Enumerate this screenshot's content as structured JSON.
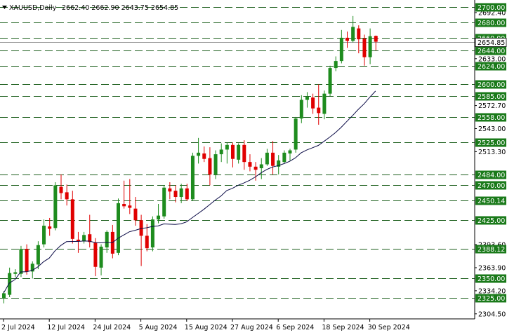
{
  "header": {
    "symbol": "XAUUSD,Daily",
    "ohlc": "2662.40 2662.90 2643.75 2654.85"
  },
  "chart_data": {
    "type": "candlestick",
    "title": "XAUUSD,Daily",
    "ylim": [
      2298,
      2705
    ],
    "x_tick_labels": [
      {
        "label": "2 Jul 2024",
        "index": 0
      },
      {
        "label": "12 Jul 2024",
        "index": 8
      },
      {
        "label": "24 Jul 2024",
        "index": 16
      },
      {
        "label": "5 Aug 2024",
        "index": 24
      },
      {
        "label": "15 Aug 2024",
        "index": 32
      },
      {
        "label": "27 Aug 2024",
        "index": 40
      },
      {
        "label": "6 Sep 2024",
        "index": 48
      },
      {
        "label": "18 Sep 2024",
        "index": 56
      },
      {
        "label": "30 Sep 2024",
        "index": 64
      }
    ],
    "y_tick_labels": [
      {
        "label": "2692.40",
        "value": 2692.4
      },
      {
        "label": "2633.00",
        "value": 2633.0
      },
      {
        "label": "2572.70",
        "value": 2572.7
      },
      {
        "label": "2543.00",
        "value": 2543.0
      },
      {
        "label": "2513.30",
        "value": 2513.3
      },
      {
        "label": "2393.60",
        "value": 2393.6
      },
      {
        "label": "2363.90",
        "value": 2363.9
      },
      {
        "label": "2334.20",
        "value": 2334.2
      },
      {
        "label": "2304.50",
        "value": 2304.5
      }
    ],
    "levels": [
      {
        "label": "2700.00",
        "value": 2700.0
      },
      {
        "label": "2680.00",
        "value": 2680.0
      },
      {
        "label": "2660.00",
        "value": 2660.0
      },
      {
        "label": "2644.00",
        "value": 2644.0
      },
      {
        "label": "2624.00",
        "value": 2624.0
      },
      {
        "label": "2600.00",
        "value": 2600.0
      },
      {
        "label": "2585.00",
        "value": 2585.0
      },
      {
        "label": "2558.00",
        "value": 2558.0
      },
      {
        "label": "2525.00",
        "value": 2525.0
      },
      {
        "label": "2484.00",
        "value": 2484.0
      },
      {
        "label": "2470.00",
        "value": 2470.0
      },
      {
        "label": "2450.14",
        "value": 2450.14
      },
      {
        "label": "2425.00",
        "value": 2425.0
      },
      {
        "label": "2388.12",
        "value": 2388.12
      },
      {
        "label": "2350.00",
        "value": 2350.0
      },
      {
        "label": "2325.00",
        "value": 2325.0
      }
    ],
    "current_price": {
      "label": "2654.85",
      "value": 2654.85
    },
    "candles": [
      {
        "o": 2325,
        "h": 2334,
        "l": 2318,
        "c": 2331
      },
      {
        "o": 2329,
        "h": 2364,
        "l": 2326,
        "c": 2357
      },
      {
        "o": 2356,
        "h": 2362,
        "l": 2352,
        "c": 2358
      },
      {
        "o": 2356,
        "h": 2392,
        "l": 2352,
        "c": 2388
      },
      {
        "o": 2388,
        "h": 2394,
        "l": 2355,
        "c": 2359
      },
      {
        "o": 2359,
        "h": 2372,
        "l": 2350,
        "c": 2369
      },
      {
        "o": 2368,
        "h": 2398,
        "l": 2362,
        "c": 2393
      },
      {
        "o": 2394,
        "h": 2426,
        "l": 2390,
        "c": 2418
      },
      {
        "o": 2417,
        "h": 2428,
        "l": 2405,
        "c": 2414
      },
      {
        "o": 2415,
        "h": 2474,
        "l": 2412,
        "c": 2470
      },
      {
        "o": 2468,
        "h": 2484,
        "l": 2452,
        "c": 2460
      },
      {
        "o": 2461,
        "h": 2471,
        "l": 2444,
        "c": 2452
      },
      {
        "o": 2452,
        "h": 2463,
        "l": 2395,
        "c": 2401
      },
      {
        "o": 2400,
        "h": 2410,
        "l": 2383,
        "c": 2398
      },
      {
        "o": 2398,
        "h": 2410,
        "l": 2395,
        "c": 2406
      },
      {
        "o": 2407,
        "h": 2432,
        "l": 2390,
        "c": 2397
      },
      {
        "o": 2396,
        "h": 2402,
        "l": 2353,
        "c": 2365
      },
      {
        "o": 2364,
        "h": 2394,
        "l": 2354,
        "c": 2391
      },
      {
        "o": 2390,
        "h": 2412,
        "l": 2383,
        "c": 2410
      },
      {
        "o": 2410,
        "h": 2419,
        "l": 2376,
        "c": 2382
      },
      {
        "o": 2383,
        "h": 2453,
        "l": 2380,
        "c": 2447
      },
      {
        "o": 2446,
        "h": 2476,
        "l": 2440,
        "c": 2443
      },
      {
        "o": 2444,
        "h": 2478,
        "l": 2433,
        "c": 2441
      },
      {
        "o": 2440,
        "h": 2455,
        "l": 2418,
        "c": 2425
      },
      {
        "o": 2425,
        "h": 2432,
        "l": 2366,
        "c": 2405
      },
      {
        "o": 2405,
        "h": 2420,
        "l": 2385,
        "c": 2389
      },
      {
        "o": 2390,
        "h": 2430,
        "l": 2385,
        "c": 2426
      },
      {
        "o": 2426,
        "h": 2446,
        "l": 2421,
        "c": 2431
      },
      {
        "o": 2430,
        "h": 2470,
        "l": 2427,
        "c": 2467
      },
      {
        "o": 2466,
        "h": 2474,
        "l": 2452,
        "c": 2462
      },
      {
        "o": 2463,
        "h": 2470,
        "l": 2448,
        "c": 2455
      },
      {
        "o": 2455,
        "h": 2472,
        "l": 2447,
        "c": 2466
      },
      {
        "o": 2466,
        "h": 2472,
        "l": 2450,
        "c": 2452
      },
      {
        "o": 2452,
        "h": 2512,
        "l": 2450,
        "c": 2508
      },
      {
        "o": 2508,
        "h": 2531,
        "l": 2498,
        "c": 2512
      },
      {
        "o": 2511,
        "h": 2520,
        "l": 2500,
        "c": 2504
      },
      {
        "o": 2505,
        "h": 2519,
        "l": 2470,
        "c": 2484
      },
      {
        "o": 2484,
        "h": 2515,
        "l": 2478,
        "c": 2510
      },
      {
        "o": 2510,
        "h": 2524,
        "l": 2500,
        "c": 2516
      },
      {
        "o": 2516,
        "h": 2525,
        "l": 2498,
        "c": 2522
      },
      {
        "o": 2522,
        "h": 2525,
        "l": 2493,
        "c": 2504
      },
      {
        "o": 2503,
        "h": 2524,
        "l": 2498,
        "c": 2522
      },
      {
        "o": 2522,
        "h": 2528,
        "l": 2490,
        "c": 2500
      },
      {
        "o": 2500,
        "h": 2510,
        "l": 2488,
        "c": 2494
      },
      {
        "o": 2494,
        "h": 2500,
        "l": 2476,
        "c": 2490
      },
      {
        "o": 2492,
        "h": 2505,
        "l": 2478,
        "c": 2497
      },
      {
        "o": 2497,
        "h": 2517,
        "l": 2495,
        "c": 2512
      },
      {
        "o": 2512,
        "h": 2527,
        "l": 2484,
        "c": 2495
      },
      {
        "o": 2494,
        "h": 2509,
        "l": 2484,
        "c": 2502
      },
      {
        "o": 2500,
        "h": 2515,
        "l": 2498,
        "c": 2512
      },
      {
        "o": 2511,
        "h": 2517,
        "l": 2502,
        "c": 2515
      },
      {
        "o": 2516,
        "h": 2558,
        "l": 2512,
        "c": 2556
      },
      {
        "o": 2556,
        "h": 2586,
        "l": 2550,
        "c": 2580
      },
      {
        "o": 2580,
        "h": 2590,
        "l": 2570,
        "c": 2584
      },
      {
        "o": 2583,
        "h": 2588,
        "l": 2562,
        "c": 2569
      },
      {
        "o": 2570,
        "h": 2600,
        "l": 2548,
        "c": 2563
      },
      {
        "o": 2562,
        "h": 2592,
        "l": 2555,
        "c": 2588
      },
      {
        "o": 2588,
        "h": 2624,
        "l": 2585,
        "c": 2621
      },
      {
        "o": 2621,
        "h": 2636,
        "l": 2617,
        "c": 2630
      },
      {
        "o": 2630,
        "h": 2670,
        "l": 2627,
        "c": 2660
      },
      {
        "o": 2660,
        "h": 2668,
        "l": 2647,
        "c": 2656
      },
      {
        "o": 2656,
        "h": 2688,
        "l": 2654,
        "c": 2674
      },
      {
        "o": 2672,
        "h": 2676,
        "l": 2640,
        "c": 2658
      },
      {
        "o": 2659,
        "h": 2664,
        "l": 2624,
        "c": 2635
      },
      {
        "o": 2635,
        "h": 2672,
        "l": 2626,
        "c": 2662
      },
      {
        "o": 2662.4,
        "h": 2662.9,
        "l": 2643.75,
        "c": 2654.85
      }
    ],
    "ma_period": 20,
    "colors": {
      "bull": "#1e8c1e",
      "bear": "#e00000",
      "level_box": "#1a7a1a",
      "level_line": "#1b5e1b",
      "ma": "#0a0a46",
      "axis": "#000000"
    }
  }
}
